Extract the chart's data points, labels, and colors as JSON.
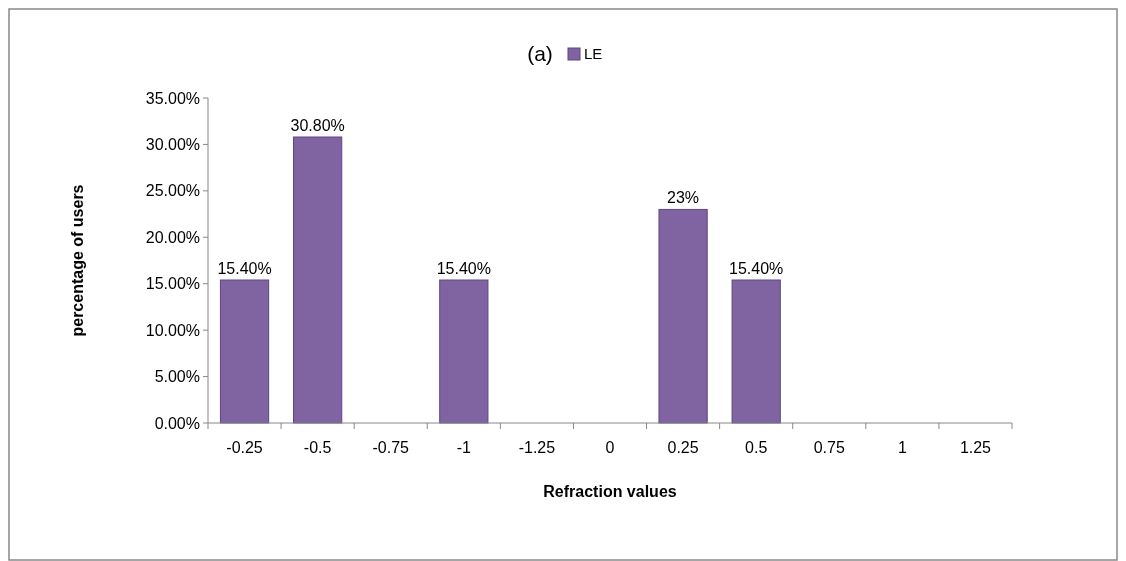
{
  "chart_data": {
    "type": "bar",
    "title": "(a)",
    "xlabel": "Refraction values",
    "ylabel": "percentage of users",
    "categories": [
      "-0.25",
      "-0.5",
      "-0.75",
      "-1",
      "-1.25",
      "0",
      "0.25",
      "0.5",
      "0.75",
      "1",
      "1.25"
    ],
    "series": [
      {
        "name": "LE",
        "color": "#8064a2",
        "values": [
          15.4,
          30.8,
          null,
          15.4,
          null,
          null,
          23,
          15.4,
          null,
          null,
          null
        ],
        "value_labels": [
          "15.40%",
          "30.80%",
          null,
          "15.40%",
          null,
          null,
          "23%",
          "15.40%",
          null,
          null,
          null
        ]
      }
    ],
    "ylim": [
      0,
      35
    ],
    "yticks": [
      {
        "value": 0,
        "label": "0.00%"
      },
      {
        "value": 5,
        "label": "5.00%"
      },
      {
        "value": 10,
        "label": "10.00%"
      },
      {
        "value": 15,
        "label": "15.00%"
      },
      {
        "value": 20,
        "label": "20.00%"
      },
      {
        "value": 25,
        "label": "25.00%"
      },
      {
        "value": 30,
        "label": "30.00%"
      },
      {
        "value": 35,
        "label": "35.00%"
      }
    ],
    "grid": false,
    "legend": "top"
  }
}
